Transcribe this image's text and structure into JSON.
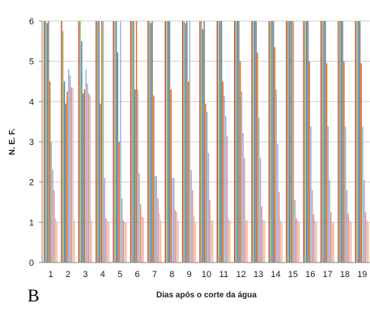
{
  "panel_label": "B",
  "chart_data": {
    "type": "bar",
    "xlabel": "Dias após o corte da água",
    "ylabel": "N. E. F.",
    "ylim": [
      0,
      6
    ],
    "yticks": [
      "0",
      "1",
      "2",
      "3",
      "4",
      "5",
      "6"
    ],
    "categories": [
      "1",
      "2",
      "3",
      "4",
      "5",
      "6",
      "7",
      "8",
      "9",
      "10",
      "11",
      "12",
      "13",
      "14",
      "15",
      "16",
      "17",
      "18",
      "19"
    ],
    "grid": true,
    "legend": "none",
    "series": [
      {
        "color": "#c0504d",
        "values": [
          6,
          6,
          6,
          6,
          6,
          6,
          6,
          6,
          6,
          6,
          6,
          6,
          6,
          6,
          6,
          6,
          6,
          6,
          6
        ]
      },
      {
        "color": "#9bbb59",
        "values": [
          6,
          5.75,
          6,
          6,
          6,
          6,
          6,
          6,
          6,
          6,
          6,
          6,
          6,
          6,
          6,
          6,
          6,
          6,
          6
        ]
      },
      {
        "color": "#4f81bd",
        "values": [
          5.95,
          4.5,
          5.5,
          6,
          6,
          6,
          5.95,
          6,
          5.95,
          5.8,
          6,
          6,
          6,
          6,
          6,
          6,
          6,
          6,
          6
        ]
      },
      {
        "color": "#7f7f7f",
        "values": [
          6,
          3.95,
          4.2,
          3.95,
          5.22,
          4.3,
          6,
          6,
          6,
          6,
          6,
          6,
          6,
          6,
          6,
          6,
          6,
          6,
          6
        ]
      },
      {
        "color": "#e46c0a",
        "values": [
          4.5,
          4.25,
          4.3,
          6,
          3,
          6,
          4.15,
          4.3,
          4.5,
          3.95,
          4.5,
          5,
          5.22,
          5.35,
          6,
          5,
          4.95,
          5,
          4.95
        ]
      },
      {
        "color": "#95b3d7",
        "values": [
          3,
          4.8,
          4.8,
          6,
          6,
          4.3,
          2.15,
          2.1,
          6,
          3.75,
          4.15,
          4.25,
          3.6,
          4.3,
          6,
          3.38,
          3.38,
          3.38,
          3.38
        ]
      },
      {
        "color": "#b3a2c7",
        "values": [
          2.3,
          4.65,
          4.45,
          2.1,
          1.6,
          2.22,
          2.15,
          2.1,
          2.3,
          2.72,
          3.65,
          3.22,
          2.6,
          2.95,
          1.55,
          1.8,
          2.05,
          1.8,
          2.05
        ]
      },
      {
        "color": "#d99694",
        "values": [
          1.8,
          4.35,
          4.2,
          1.1,
          1.05,
          1.45,
          1.6,
          1.3,
          1.8,
          1.55,
          3.15,
          2.6,
          1.4,
          1.75,
          1.1,
          1.2,
          1.25,
          1.22,
          1.25
        ]
      },
      {
        "color": "#e6b9b8",
        "values": [
          1.1,
          4.35,
          4.15,
          1.05,
          1,
          1.15,
          1.22,
          1.25,
          1.15,
          1.05,
          1.1,
          1.05,
          1.05,
          1.05,
          1.05,
          1.05,
          1,
          1.05,
          1.05
        ]
      },
      {
        "color": "#fac090",
        "values": [
          1,
          1.05,
          1.05,
          1,
          1,
          1.12,
          1.05,
          1.05,
          1,
          1.05,
          1.05,
          1.05,
          1.05,
          1,
          1,
          1,
          1,
          1,
          1
        ]
      }
    ]
  }
}
